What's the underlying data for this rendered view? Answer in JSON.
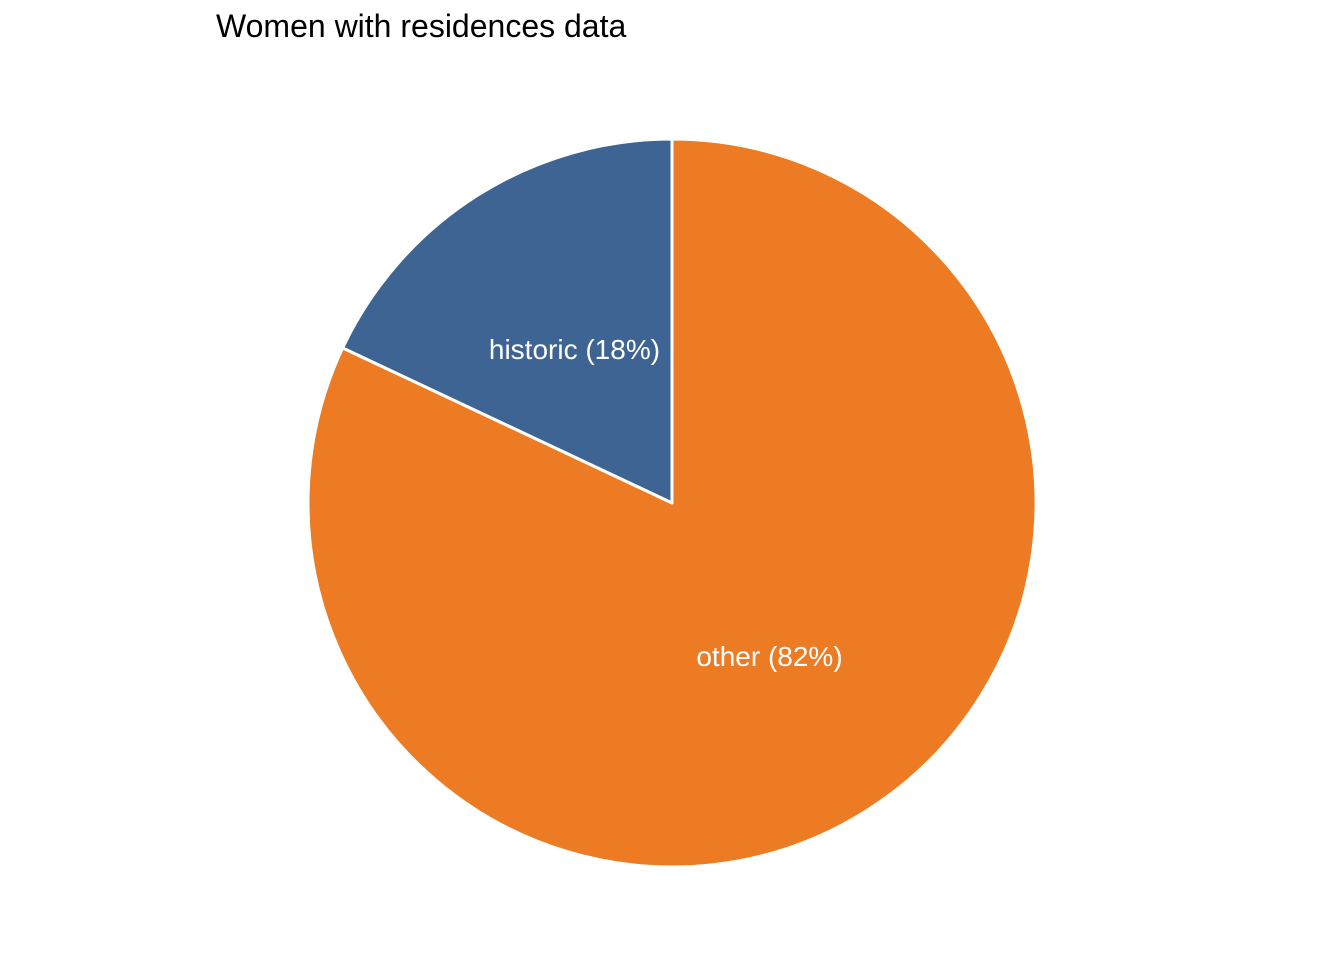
{
  "chart_data": {
    "type": "pie",
    "title": "Women with residences data",
    "slices": [
      {
        "label": "historic",
        "value": 18,
        "display": "historic (18%)",
        "color": "#3e6493"
      },
      {
        "label": "other",
        "value": 82,
        "display": "other (82%)",
        "color": "#ec7b23"
      }
    ],
    "start_angle": "12 o'clock",
    "direction": "counterclockwise",
    "slice_border_color": "#ffffff",
    "legend": "none"
  }
}
